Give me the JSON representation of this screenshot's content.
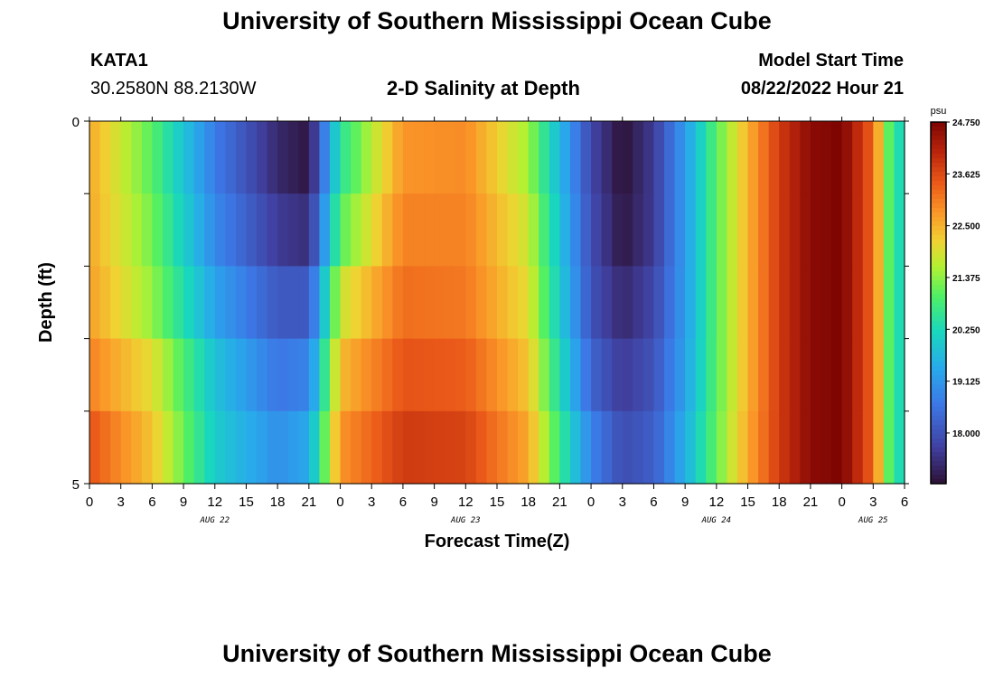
{
  "header": {
    "main_title": "University of Southern Mississippi Ocean Cube",
    "station_id": "KATA1",
    "station_coords": "30.2580N  88.2130W",
    "plot_title": "2-D Salinity at Depth",
    "model_start_label": "Model Start Time",
    "model_start_value": "08/22/2022 Hour 21"
  },
  "footer": {
    "title": "University of Southern Mississippi Ocean Cube"
  },
  "chart_data": {
    "type": "heatmap",
    "title": "2-D Salinity at Depth",
    "xlabel": "Forecast Time(Z)",
    "ylabel": "Depth (ft)",
    "x_start_hour": 0,
    "x_end_hour": 78,
    "x_tick_labels": [
      "0",
      "3",
      "6",
      "9",
      "12",
      "15",
      "18",
      "21",
      "0",
      "3",
      "6",
      "9",
      "12",
      "15",
      "18",
      "21",
      "0",
      "3",
      "6",
      "9",
      "12",
      "15",
      "18",
      "21",
      "0",
      "3",
      "6"
    ],
    "date_labels": [
      {
        "label": "AUG 22",
        "hour": 12
      },
      {
        "label": "AUG 23",
        "hour": 36
      },
      {
        "label": "AUG 24",
        "hour": 60
      },
      {
        "label": "AUG 25",
        "hour": 75
      }
    ],
    "y_tick_labels": [
      "0",
      "5"
    ],
    "ylim": [
      0,
      5
    ],
    "depth_rows": 5,
    "colorbar": {
      "unit": "psu",
      "min": 16.9,
      "max": 24.75,
      "tick_labels": [
        "24.750",
        "23.625",
        "22.500",
        "21.375",
        "20.250",
        "19.125",
        "18.000"
      ]
    },
    "salinity_profiles": [
      {
        "depth_row": 0,
        "hours": [
          0,
          6,
          12,
          18,
          21,
          24,
          30,
          36,
          42,
          48,
          51,
          54,
          57,
          60,
          63,
          66,
          69,
          72,
          75,
          77
        ],
        "values": [
          22.6,
          21.0,
          18.7,
          17.3,
          17.0,
          20.5,
          22.8,
          22.9,
          21.5,
          17.8,
          16.9,
          17.6,
          19.2,
          21.0,
          22.5,
          23.8,
          24.6,
          24.75,
          23.3,
          20.3
        ]
      },
      {
        "depth_row": 1,
        "hours": [
          0,
          6,
          12,
          18,
          21,
          24,
          30,
          36,
          42,
          48,
          51,
          54,
          57,
          60,
          63,
          66,
          69,
          72,
          75,
          77
        ],
        "values": [
          22.6,
          21.2,
          18.9,
          17.6,
          17.4,
          21.0,
          23.0,
          23.0,
          21.8,
          17.9,
          17.0,
          17.6,
          19.2,
          21.0,
          22.5,
          23.8,
          24.6,
          24.75,
          23.3,
          20.3
        ]
      },
      {
        "depth_row": 2,
        "hours": [
          0,
          6,
          12,
          18,
          21,
          24,
          30,
          36,
          42,
          48,
          51,
          54,
          57,
          60,
          63,
          66,
          69,
          72,
          75,
          77
        ],
        "values": [
          22.7,
          21.4,
          19.3,
          18.1,
          18.1,
          21.8,
          23.2,
          23.1,
          22.0,
          18.0,
          17.3,
          17.8,
          19.2,
          21.0,
          22.5,
          23.8,
          24.6,
          24.75,
          23.3,
          20.3
        ]
      },
      {
        "depth_row": 3,
        "hours": [
          0,
          6,
          12,
          18,
          21,
          24,
          30,
          36,
          42,
          48,
          51,
          54,
          57,
          60,
          63,
          66,
          69,
          72,
          75,
          77
        ],
        "values": [
          23.0,
          22.0,
          19.8,
          18.6,
          18.8,
          22.4,
          23.5,
          23.4,
          22.3,
          18.3,
          17.6,
          18.0,
          19.3,
          21.0,
          22.5,
          23.8,
          24.6,
          24.75,
          23.3,
          20.3
        ]
      },
      {
        "depth_row": 4,
        "hours": [
          0,
          6,
          12,
          18,
          21,
          24,
          30,
          36,
          42,
          48,
          51,
          54,
          57,
          60,
          63,
          66,
          69,
          72,
          75,
          77
        ],
        "values": [
          23.5,
          22.3,
          20.0,
          19.0,
          19.4,
          22.8,
          23.8,
          23.7,
          22.6,
          18.8,
          17.9,
          18.2,
          19.5,
          21.1,
          22.6,
          23.8,
          24.6,
          24.75,
          23.3,
          20.3
        ]
      }
    ]
  }
}
